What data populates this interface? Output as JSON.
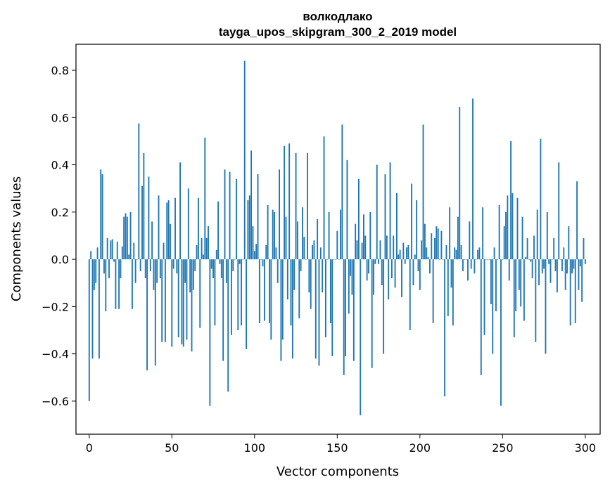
{
  "chart_data": {
    "type": "bar",
    "title": "волкодлако",
    "subtitle": "tayga_upos_skipgram_300_2_2019 model",
    "xlabel": "Vector components",
    "ylabel": "Components values",
    "xlim": [
      -8,
      309
    ],
    "ylim": [
      -0.74,
      0.91
    ],
    "xticks": [
      0,
      50,
      100,
      150,
      200,
      250,
      300
    ],
    "xtick_labels": [
      "0",
      "50",
      "100",
      "150",
      "200",
      "250",
      "300"
    ],
    "yticks": [
      -0.6,
      -0.4,
      -0.2,
      0.0,
      0.2,
      0.4,
      0.6,
      0.8
    ],
    "ytick_labels": [
      "−0.6",
      "−0.4",
      "−0.2",
      "0.0",
      "0.2",
      "0.4",
      "0.6",
      "0.8"
    ],
    "grid": false,
    "color": "#1f77b4",
    "values": [
      -0.6,
      0.035,
      -0.42,
      -0.13,
      -0.1,
      0.05,
      -0.42,
      0.38,
      0.36,
      -0.06,
      -0.22,
      0.09,
      -0.08,
      0.08,
      0.085,
      -0.01,
      -0.21,
      0.075,
      -0.21,
      -0.08,
      0.055,
      0.18,
      0.195,
      0.18,
      0.02,
      0.2,
      -0.21,
      0.07,
      -0.1,
      0.0,
      0.575,
      -0.05,
      0.31,
      0.45,
      -0.08,
      -0.47,
      0.35,
      -0.05,
      0.16,
      -0.13,
      -0.45,
      -0.1,
      0.27,
      -0.08,
      -0.35,
      0.07,
      -0.35,
      0.24,
      0.25,
      0.15,
      -0.37,
      -0.04,
      0.26,
      -0.06,
      -0.33,
      0.41,
      -0.36,
      -0.37,
      -0.1,
      -0.34,
      0.3,
      -0.14,
      -0.39,
      -0.13,
      -0.05,
      0.06,
      0.26,
      -0.29,
      0.09,
      0.02,
      0.515,
      0.09,
      0.14,
      -0.62,
      -0.04,
      -0.08,
      -0.28,
      0.04,
      0.245,
      -0.02,
      -0.08,
      -0.43,
      0.38,
      -0.1,
      -0.56,
      0.37,
      -0.32,
      -0.05,
      0.0,
      0.34,
      -0.3,
      -0.02,
      -0.28,
      0.0,
      0.84,
      -0.38,
      0.25,
      0.27,
      0.46,
      0.14,
      0.035,
      0.065,
      0.36,
      -0.27,
      0.0,
      -0.03,
      -0.26,
      0.06,
      0.23,
      -0.27,
      -0.34,
      0.21,
      0.2,
      0.05,
      -0.1,
      0.38,
      -0.43,
      -0.34,
      0.48,
      0.18,
      -0.17,
      0.49,
      -0.28,
      -0.42,
      -0.13,
      0.45,
      0.16,
      -0.25,
      -0.05,
      0.22,
      0.095,
      0.0,
      0.45,
      -0.14,
      -0.21,
      0.06,
      0.08,
      -0.42,
      0.17,
      -0.45,
      0.05,
      -0.14,
      0.52,
      -0.33,
      0.0,
      0.2,
      -0.27,
      -0.41,
      0.0,
      0.0,
      0.12,
      0.0,
      0.21,
      0.57,
      -0.49,
      -0.41,
      0.42,
      -0.23,
      -0.07,
      -0.15,
      -0.43,
      0.15,
      0.08,
      0.34,
      -0.66,
      0.07,
      0.19,
      0.1,
      -0.09,
      -0.06,
      0.2,
      -0.46,
      -0.15,
      -0.02,
      0.4,
      -0.02,
      0.08,
      -0.11,
      -0.4,
      0.36,
      0.1,
      -0.17,
      0.41,
      -0.08,
      0.1,
      -0.12,
      0.28,
      0.02,
      0.04,
      -0.16,
      0.07,
      -0.02,
      0.05,
      0.06,
      -0.3,
      0.32,
      -0.11,
      0.02,
      0.25,
      -0.05,
      -0.13,
      0.08,
      0.57,
      0.15,
      0.05,
      0.01,
      -0.06,
      0.11,
      -0.27,
      0.09,
      0.14,
      0.13,
      0.0,
      0.12,
      0.0,
      -0.58,
      0.06,
      -0.24,
      0.22,
      -0.12,
      -0.28,
      0.05,
      0.04,
      0.18,
      0.645,
      0.06,
      -0.05,
      0.0,
      0.0,
      -0.09,
      0.16,
      -0.04,
      0.68,
      -0.06,
      0.0,
      0.04,
      0.05,
      -0.49,
      0.22,
      -0.32,
      0.0,
      0.0,
      0.0,
      -0.19,
      -0.4,
      0.05,
      -0.22,
      0.0,
      0.23,
      -0.62,
      0.0,
      0.14,
      0.2,
      0.27,
      -0.09,
      0.5,
      0.28,
      -0.33,
      -0.22,
      0.26,
      -0.13,
      -0.2,
      0.18,
      -0.26,
      0.01,
      0.09,
      0.0,
      -0.01,
      -0.08,
      0.1,
      -0.35,
      0.21,
      -0.11,
      0.51,
      -0.06,
      -0.04,
      -0.4,
      0.2,
      -0.02,
      -0.1,
      0.0,
      0.09,
      -0.05,
      -0.14,
      0.41,
      0.0,
      -0.05,
      0.05,
      -0.13,
      -0.06,
      0.14,
      -0.28,
      -0.06,
      -0.04,
      -0.27,
      0.33,
      -0.13,
      -0.03,
      -0.18,
      0.09,
      -0.02
    ]
  }
}
